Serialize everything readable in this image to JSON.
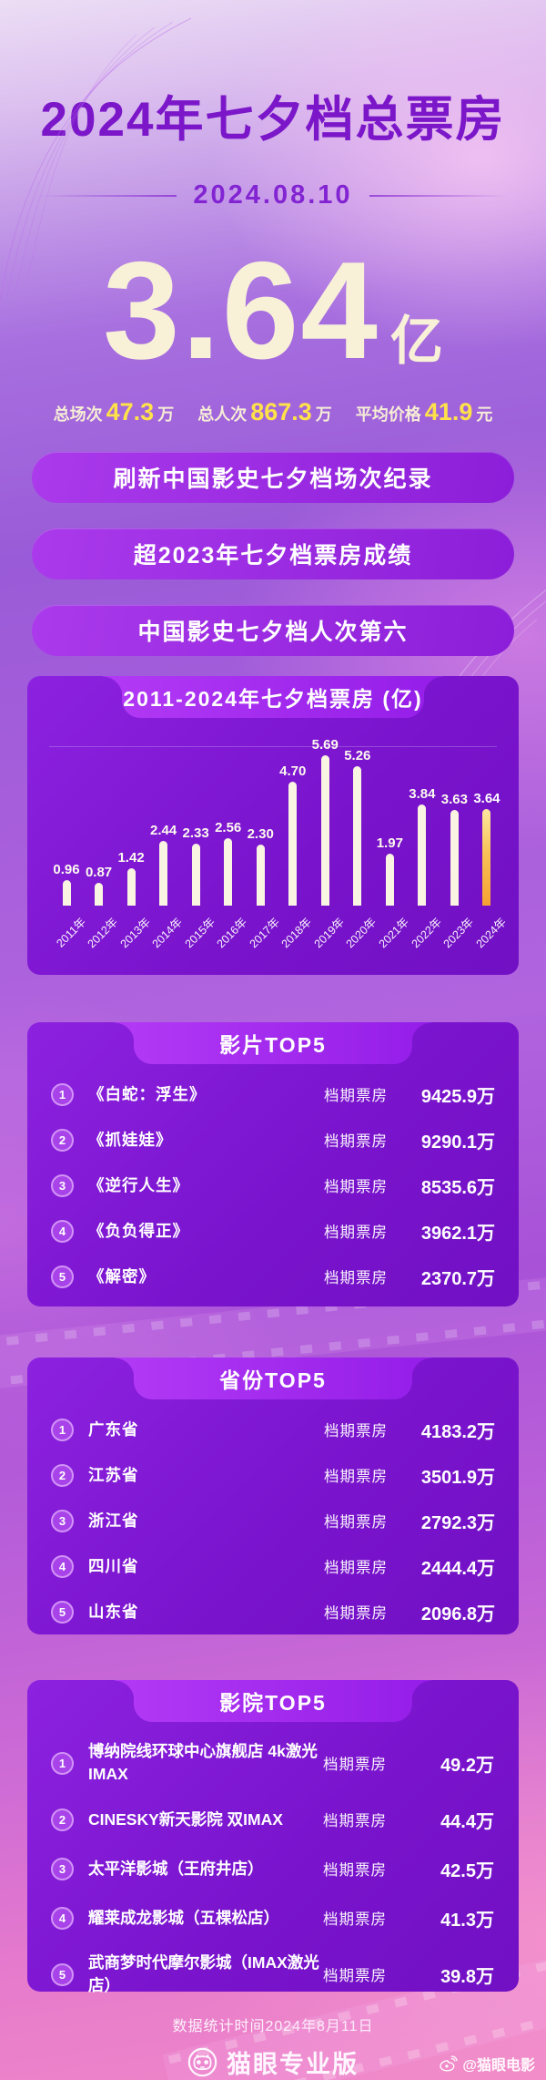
{
  "header": {
    "title": "2024年七夕档总票房",
    "date": "2024.08.10"
  },
  "hero": {
    "value": "3.64",
    "unit": "亿"
  },
  "stats": [
    {
      "label": "总场次",
      "value": "47.3",
      "unit": "万"
    },
    {
      "label": "总人次",
      "value": "867.3",
      "unit": "万"
    },
    {
      "label": "平均价格",
      "value": "41.9",
      "unit": "元"
    }
  ],
  "banners": [
    "刷新中国影史七夕档场次纪录",
    "超2023年七夕档票房成绩",
    "中国影史七夕档人次第六"
  ],
  "chart_data": {
    "type": "bar",
    "title": "2011-2024年七夕档票房 (亿)",
    "categories": [
      "2011年",
      "2012年",
      "2013年",
      "2014年",
      "2015年",
      "2016年",
      "2017年",
      "2018年",
      "2019年",
      "2020年",
      "2021年",
      "2022年",
      "2023年",
      "2024年"
    ],
    "values": [
      0.96,
      0.87,
      1.42,
      2.44,
      2.33,
      2.56,
      2.3,
      4.7,
      5.69,
      5.26,
      1.97,
      3.84,
      3.63,
      3.64
    ],
    "value_labels": [
      "0.96",
      "0.87",
      "1.42",
      "2.44",
      "2.33",
      "2.56",
      "2.30",
      "4.70",
      "5.69",
      "5.26",
      "1.97",
      "3.84",
      "3.63",
      "3.64"
    ],
    "highlight_index": 13,
    "xlabel": "",
    "ylabel": "亿",
    "ylim": [
      0,
      6
    ],
    "grid": "single-faint-top-line",
    "bar_color": "#faf4e2",
    "highlight_color_top": "#fce7a0",
    "highlight_color_bottom": "#f5a132"
  },
  "top5_films": {
    "title": "影片TOP5",
    "value_label": "档期票房",
    "rows": [
      {
        "rank": "1",
        "name": "《白蛇：浮生》",
        "value": "9425.9万"
      },
      {
        "rank": "2",
        "name": "《抓娃娃》",
        "value": "9290.1万"
      },
      {
        "rank": "3",
        "name": "《逆行人生》",
        "value": "8535.6万"
      },
      {
        "rank": "4",
        "name": "《负负得正》",
        "value": "3962.1万"
      },
      {
        "rank": "5",
        "name": "《解密》",
        "value": "2370.7万"
      }
    ]
  },
  "top5_provinces": {
    "title": "省份TOP5",
    "value_label": "档期票房",
    "rows": [
      {
        "rank": "1",
        "name": "广东省",
        "value": "4183.2万"
      },
      {
        "rank": "2",
        "name": "江苏省",
        "value": "3501.9万"
      },
      {
        "rank": "3",
        "name": "浙江省",
        "value": "2792.3万"
      },
      {
        "rank": "4",
        "name": "四川省",
        "value": "2444.4万"
      },
      {
        "rank": "5",
        "name": "山东省",
        "value": "2096.8万"
      }
    ]
  },
  "top5_cinemas": {
    "title": "影院TOP5",
    "value_label": "档期票房",
    "rows": [
      {
        "rank": "1",
        "name": "博纳院线环球中心旗舰店 4k激光IMAX",
        "value": "49.2万"
      },
      {
        "rank": "2",
        "name": "CINESKY新天影院 双IMAX",
        "value": "44.4万"
      },
      {
        "rank": "3",
        "name": "太平洋影城（王府井店）",
        "value": "42.5万"
      },
      {
        "rank": "4",
        "name": "耀莱成龙影城（五棵松店）",
        "value": "41.3万"
      },
      {
        "rank": "5",
        "name": "武商梦时代摩尔影城（IMAX激光店）",
        "value": "39.8万"
      }
    ]
  },
  "footer": {
    "note": "数据统计时间2024年8月11日",
    "brand": "猫眼专业版",
    "credit": "@猫眼电影"
  },
  "colors": {
    "title_purple": "#7b16c9",
    "hero_cream": "#f8f1d8",
    "stat_yellow": "#ffe14a",
    "card_purple": "#7a14cd",
    "tab_purple": "#a52ef0",
    "highlight_gold": "#f5a132"
  }
}
